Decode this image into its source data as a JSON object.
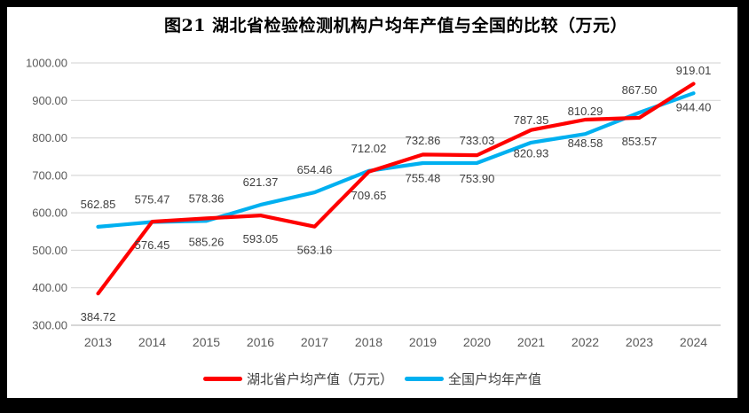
{
  "title": "图21 湖北省检验检测机构户均年产值与全国的比较（万元）",
  "chart_data": {
    "type": "line",
    "categories": [
      "2013",
      "2014",
      "2015",
      "2016",
      "2017",
      "2018",
      "2019",
      "2020",
      "2021",
      "2022",
      "2023",
      "2024"
    ],
    "series": [
      {
        "name": "湖北省户均产值（万元）",
        "color": "#FF0000",
        "label_position": "below",
        "values": [
          384.72,
          576.45,
          585.26,
          593.05,
          563.16,
          709.65,
          755.48,
          753.9,
          820.93,
          848.58,
          853.57,
          944.4
        ]
      },
      {
        "name": "全国户均年产值",
        "color": "#00B0F0",
        "label_position": "above",
        "values": [
          562.85,
          575.47,
          578.36,
          621.37,
          654.46,
          712.02,
          732.86,
          733.03,
          787.35,
          810.29,
          867.5,
          919.01
        ]
      }
    ],
    "title": "图21 湖北省检验检测机构户均年产值与全国的比较（万元）",
    "xlabel": "",
    "ylabel": "",
    "ylim": [
      300,
      1000
    ],
    "yticks": [
      "300.00",
      "400.00",
      "500.00",
      "600.00",
      "700.00",
      "800.00",
      "900.00",
      "1000.00"
    ],
    "grid": true,
    "legend_position": "bottom",
    "value_decimals": 2
  },
  "colors": {
    "grid": "#D9D9D9",
    "axis_line": "#BFBFBF",
    "tick_text": "#595959",
    "data_label_text": "#404040",
    "title_text": "#000000",
    "frame": "#000000",
    "background": "#FFFFFF"
  }
}
